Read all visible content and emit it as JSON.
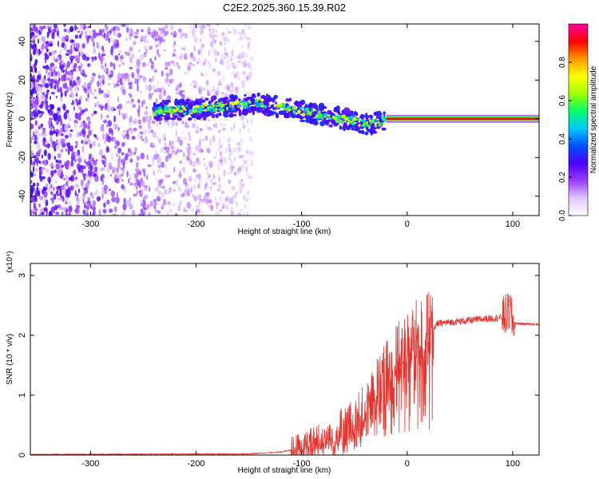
{
  "chart_data": [
    {
      "type": "heatmap",
      "title": "C2E2.2025.360.15.39.R02",
      "xlabel": "Height of straight line (km)",
      "ylabel": "Frequency (Hz)",
      "xlim": [
        -357,
        125
      ],
      "ylim": [
        -50,
        49
      ],
      "xticks": [
        -300,
        -200,
        -100,
        0,
        100
      ],
      "yticks": [
        -40,
        -20,
        0,
        20,
        40
      ],
      "colorbar": {
        "label": "Normalized spectral amplitude",
        "range": [
          0,
          1
        ],
        "ticks": [
          0.0,
          0.2,
          0.4,
          0.6,
          0.8
        ],
        "tick_labels": [
          "0.0",
          "0.2",
          "0.4",
          "0.6",
          "0.8"
        ],
        "colors": [
          "#ffffff",
          "#e0c8ff",
          "#9a3cff",
          "#4b00ff",
          "#0050ff",
          "#00c8ff",
          "#00ff64",
          "#a0ff00",
          "#ffff00",
          "#ff9600",
          "#ff0000",
          "#ff00a0"
        ]
      },
      "ridge": {
        "x": [
          -240,
          -220,
          -200,
          -180,
          -160,
          -140,
          -120,
          -100,
          -80,
          -60,
          -45,
          -35,
          -25,
          -15,
          -5,
          0,
          20,
          50,
          80,
          100,
          125
        ],
        "y": [
          4,
          4.5,
          5,
          6,
          7,
          8,
          6,
          4,
          2,
          0,
          -2,
          -3,
          -1,
          1,
          1,
          0,
          0,
          0,
          0,
          0,
          0
        ]
      },
      "line_start": -20,
      "line_value": 0
    },
    {
      "type": "line",
      "xlabel": "Height of straight line (km)",
      "ylabel": "SNR (10 * v/v)",
      "multiplier": "(x10⁴)",
      "xlim": [
        -357,
        125
      ],
      "ylim": [
        0,
        3.2
      ],
      "xticks": [
        -300,
        -200,
        -100,
        0,
        100
      ],
      "yticks": [
        0,
        1,
        2,
        3
      ],
      "color": "#e8342e",
      "envelope": {
        "x": [
          -357,
          -150,
          -120,
          -100,
          -80,
          -60,
          -45,
          -35,
          -25,
          -15,
          -5,
          5,
          20,
          30,
          60,
          90,
          98,
          100,
          125
        ],
        "y": [
          0.01,
          0.02,
          0.05,
          0.12,
          0.25,
          0.4,
          0.6,
          0.9,
          1.2,
          1.5,
          1.7,
          1.9,
          2.05,
          2.2,
          2.25,
          2.3,
          2.4,
          2.2,
          2.18
        ]
      }
    }
  ]
}
